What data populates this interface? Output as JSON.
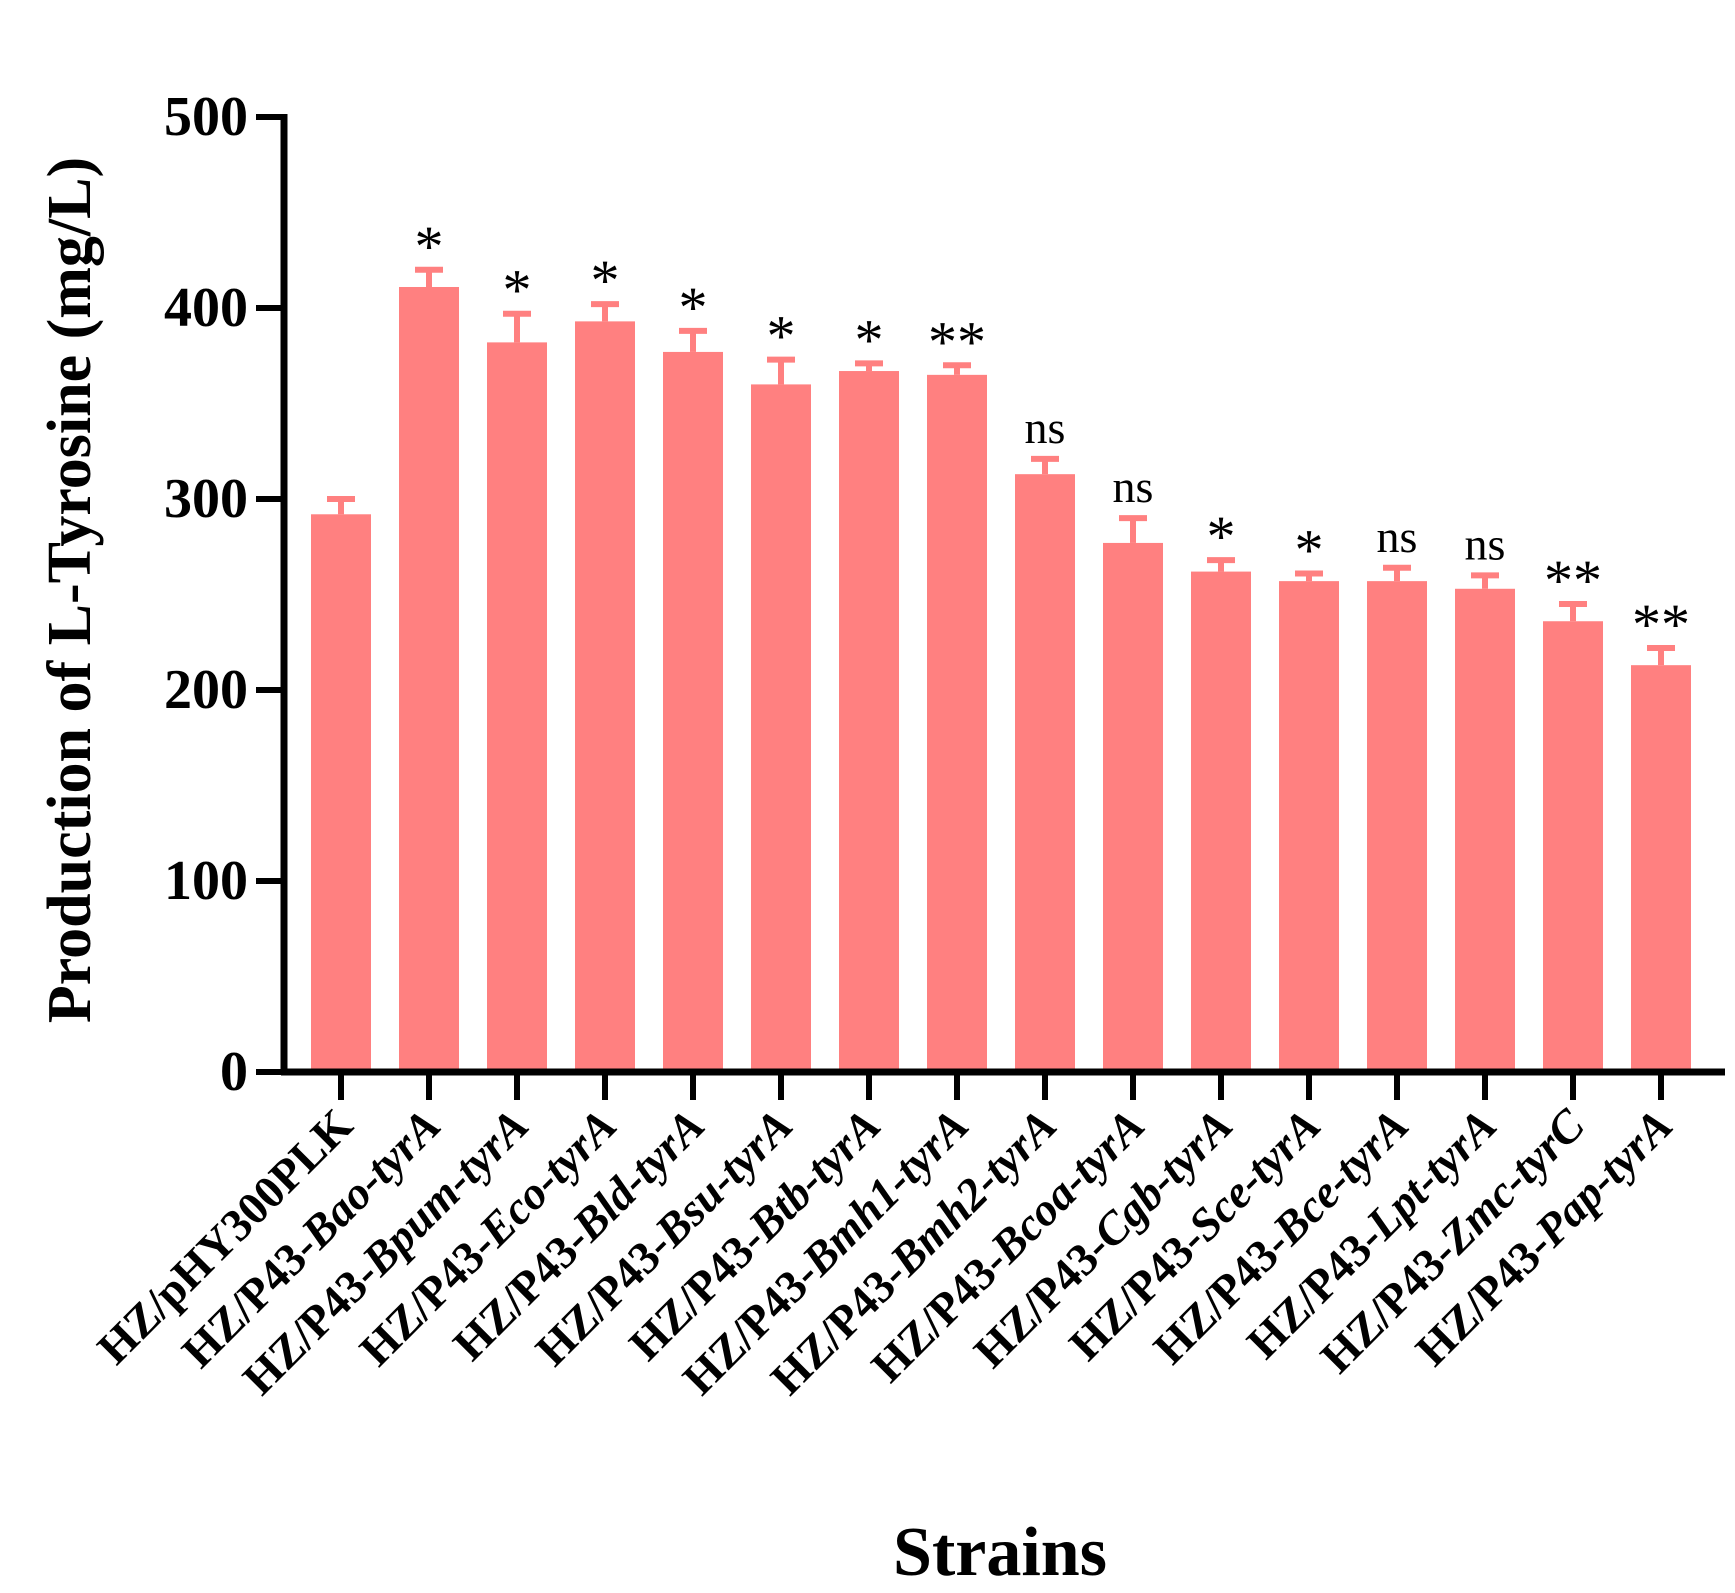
{
  "colors": {
    "bar": "#FF8080",
    "error": "#FF8080",
    "axis": "#000000",
    "background": "#FFFFFF"
  },
  "chart_data": {
    "type": "bar",
    "title": "",
    "xlabel": "Strains",
    "ylabel": "Production of L-Tyrosine (mg/L)",
    "ylim": [
      0,
      500
    ],
    "yticks": [
      0,
      100,
      200,
      300,
      400,
      500
    ],
    "categories": [
      {
        "prefix": "HZ/pHY300PLK",
        "suffix": ""
      },
      {
        "prefix": "HZ/P43-",
        "suffix": "Bao-tyrA"
      },
      {
        "prefix": "HZ/P43-",
        "suffix": "Bpum-tyrA"
      },
      {
        "prefix": "HZ/P43-",
        "suffix": "Eco-tyrA"
      },
      {
        "prefix": "HZ/P43-",
        "suffix": "Bld-tyrA"
      },
      {
        "prefix": "HZ/P43-",
        "suffix": "Bsu-tyrA"
      },
      {
        "prefix": "HZ/P43-",
        "suffix": "Btb-tyrA"
      },
      {
        "prefix": "HZ/P43-",
        "suffix": "Bmh1-tyrA"
      },
      {
        "prefix": "HZ/P43-",
        "suffix": "Bmh2-tyrA"
      },
      {
        "prefix": "HZ/P43-",
        "suffix": "Bcoa-tyrA"
      },
      {
        "prefix": "HZ/P43-",
        "suffix": "Cgb-tyrA"
      },
      {
        "prefix": "HZ/P43-",
        "suffix": "Sce-tyrA"
      },
      {
        "prefix": "HZ/P43-",
        "suffix": "Bce-tyrA"
      },
      {
        "prefix": "HZ/P43-",
        "suffix": "Lpt-tyrA"
      },
      {
        "prefix": "HZ/P43-",
        "suffix": "Zmc-tyrC"
      },
      {
        "prefix": "HZ/P43-",
        "suffix": "Pap-tyrA"
      }
    ],
    "values": [
      292,
      411,
      382,
      393,
      377,
      360,
      367,
      365,
      313,
      277,
      262,
      257,
      257,
      253,
      236,
      213
    ],
    "errors": [
      8,
      9,
      15,
      9,
      11,
      13,
      4,
      5,
      8,
      13,
      6,
      4,
      7,
      7,
      9,
      9
    ],
    "significance": [
      "",
      "*",
      "*",
      "*",
      "*",
      "*",
      "*",
      "**",
      "ns",
      "ns",
      "*",
      "*",
      "ns",
      "ns",
      "**",
      "**"
    ]
  }
}
